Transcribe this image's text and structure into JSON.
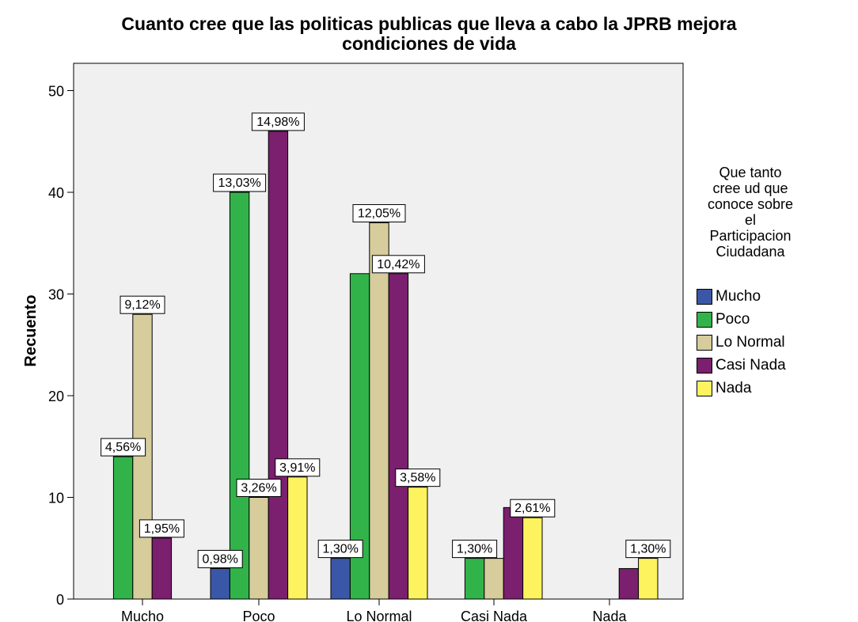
{
  "chart_data": {
    "type": "bar",
    "title_lines": [
      "Cuanto cree que las politicas publicas que lleva a cabo la JPRB mejora",
      "condiciones de vida"
    ],
    "xlabel": "",
    "ylabel": "Recuento",
    "ylim": [
      0,
      50
    ],
    "yticks": [
      "0",
      "10",
      "20",
      "30",
      "40",
      "50"
    ],
    "grid": false,
    "legend_position": "right",
    "legend_title_lines": [
      "Que tanto",
      "cree ud que",
      "conoce sobre",
      "el",
      "Participacion",
      "Ciudadana"
    ],
    "categories": [
      "Mucho",
      "Poco",
      "Lo Normal",
      "Casi Nada",
      "Nada"
    ],
    "series": [
      {
        "name": "Mucho",
        "color": "#3a57a7",
        "values": [
          0,
          3,
          4,
          0,
          0
        ],
        "labels": [
          "",
          "0,98%",
          "1,30%",
          "",
          ""
        ]
      },
      {
        "name": "Poco",
        "color": "#32b34a",
        "values": [
          14,
          40,
          32,
          4,
          0
        ],
        "labels": [
          "4,56%",
          "13,03%",
          "",
          "1,30%",
          ""
        ]
      },
      {
        "name": "Lo Normal",
        "color": "#d6cc9c",
        "values": [
          28,
          10,
          37,
          4,
          0
        ],
        "labels": [
          "9,12%",
          "3,26%",
          "12,05%",
          "",
          ""
        ]
      },
      {
        "name": "Casi Nada",
        "color": "#7b1f6f",
        "values": [
          6,
          46,
          32,
          9,
          3
        ],
        "labels": [
          "1,95%",
          "14,98%",
          "10,42%",
          "",
          ""
        ]
      },
      {
        "name": "Nada",
        "color": "#fdf35f",
        "values": [
          0,
          12,
          11,
          8,
          4
        ],
        "labels": [
          "",
          "3,91%",
          "3,58%",
          "2,61%",
          "1,30%"
        ]
      }
    ]
  }
}
